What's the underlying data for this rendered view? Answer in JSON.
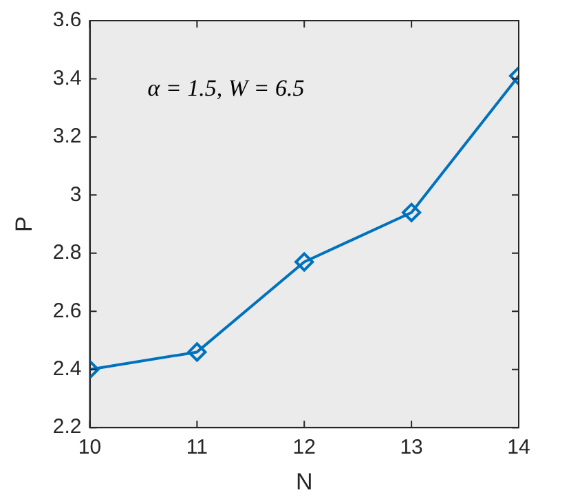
{
  "chart_data": {
    "type": "line",
    "xlabel": "N",
    "ylabel": "P",
    "annotations": [
      "α = 1.5, W = 6.5"
    ],
    "x": [
      10,
      11,
      12,
      13,
      14
    ],
    "series": [
      {
        "color": "#0072bd",
        "values": [
          2.4,
          2.46,
          2.77,
          2.94,
          3.41
        ]
      }
    ],
    "xlim": [
      10,
      14
    ],
    "xticks": [
      10,
      11,
      12,
      13,
      14
    ],
    "ylim": [
      2.2,
      3.6
    ],
    "yticks": [
      2.2,
      2.4,
      2.6,
      2.8,
      3,
      3.2,
      3.4,
      3.6
    ],
    "grid": false,
    "legend": false,
    "marker": "diamond",
    "line_style": "solid"
  }
}
